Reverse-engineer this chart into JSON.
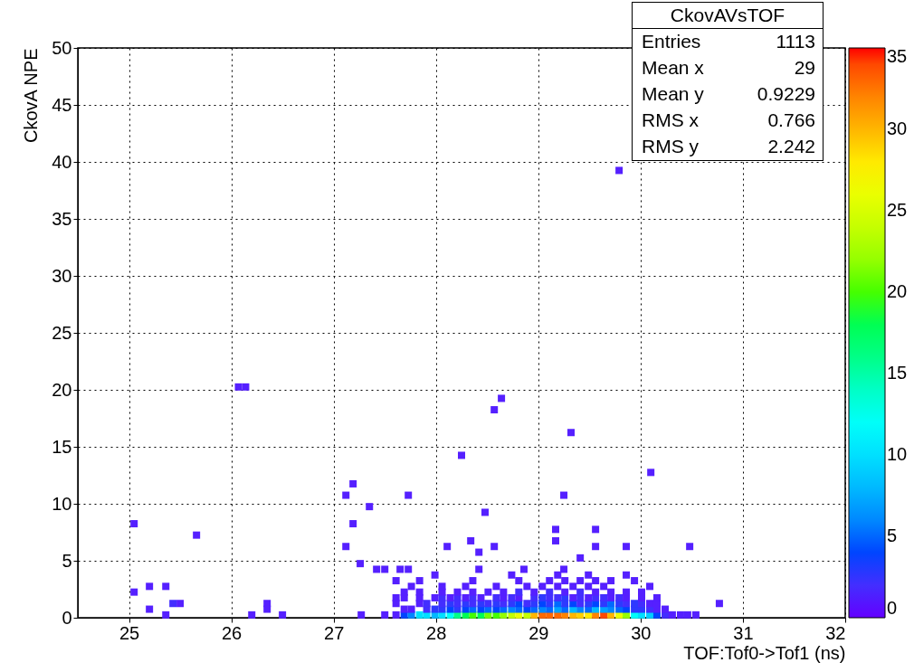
{
  "chart_data": {
    "type": "scatter",
    "xlabel": "TOF:Tof0->Tof1 (ns)",
    "ylabel": "CkovA NPE",
    "marker": "square",
    "grid": true,
    "xlim": [
      24.5,
      32
    ],
    "ylim": [
      0,
      50
    ],
    "xticks": [
      25,
      26,
      27,
      28,
      29,
      30,
      31,
      32
    ],
    "yticks": [
      0,
      5,
      10,
      15,
      20,
      25,
      30,
      35,
      40,
      45,
      50
    ],
    "clim": [
      0,
      35
    ],
    "cticks": [
      0,
      5,
      10,
      15,
      20,
      25,
      30,
      35
    ],
    "annotations": [
      "CkovAVsTOF",
      "Entries",
      "1113",
      "Mean x",
      "29",
      "Mean y",
      "0.9229",
      "RMS x",
      "0.766",
      "RMS y",
      "2.242"
    ],
    "x": [
      29.79,
      26.07,
      26.14,
      28.64,
      28.57,
      29.32,
      28.25,
      30.1,
      27.19,
      27.12,
      27.73,
      29.25,
      27.35,
      28.48,
      25.05,
      27.19,
      29.17,
      29.56,
      25.66,
      28.34,
      29.17,
      27.12,
      28.11,
      28.57,
      29.56,
      29.86,
      30.48,
      28.42,
      29.41,
      27.26,
      27.42,
      27.5,
      27.65,
      27.73,
      28.42,
      28.86,
      29.25,
      25.05,
      25.2,
      25.36,
      25.43,
      25.5,
      25.2,
      25.36,
      26.2,
      26.35,
      26.35,
      26.5,
      27.27,
      27.5,
      30.77,
      27.61,
      27.69,
      27.76,
      27.84,
      27.91,
      27.99,
      28.06,
      28.14,
      28.21,
      28.29,
      28.36,
      28.44,
      28.51,
      28.59,
      28.66,
      28.74,
      28.81,
      28.89,
      28.96,
      29.04,
      29.11,
      29.19,
      29.26,
      29.34,
      29.41,
      29.49,
      29.56,
      29.64,
      29.71,
      29.79,
      29.86,
      29.94,
      30.01,
      30.09,
      30.16,
      30.24,
      30.31,
      30.39,
      30.46,
      30.54,
      27.69,
      27.76,
      27.91,
      27.99,
      28.06,
      28.14,
      28.21,
      28.29,
      28.36,
      28.44,
      28.51,
      28.59,
      28.66,
      28.74,
      28.81,
      28.89,
      28.96,
      29.04,
      29.11,
      29.19,
      29.26,
      29.34,
      29.41,
      29.49,
      29.56,
      29.64,
      29.71,
      29.79,
      29.86,
      29.94,
      30.01,
      30.09,
      30.16,
      30.24,
      27.61,
      27.84,
      27.91,
      28.06,
      28.14,
      28.21,
      28.29,
      28.36,
      28.44,
      28.51,
      28.59,
      28.66,
      28.74,
      28.81,
      28.89,
      28.96,
      29.04,
      29.11,
      29.19,
      29.26,
      29.34,
      29.41,
      29.49,
      29.56,
      29.64,
      29.71,
      29.79,
      29.86,
      29.94,
      30.01,
      30.09,
      30.16,
      27.61,
      27.69,
      27.84,
      27.99,
      28.06,
      28.14,
      28.21,
      28.29,
      28.36,
      28.44,
      28.59,
      28.66,
      28.74,
      28.81,
      28.96,
      29.04,
      29.11,
      29.19,
      29.26,
      29.34,
      29.41,
      29.49,
      29.56,
      29.64,
      29.71,
      29.79,
      29.86,
      30.01,
      30.16,
      27.69,
      27.84,
      28.06,
      28.21,
      28.36,
      28.51,
      28.66,
      28.81,
      28.96,
      29.11,
      29.26,
      29.41,
      29.56,
      29.71,
      29.86,
      30.01,
      27.76,
      28.06,
      28.29,
      28.59,
      28.89,
      29.04,
      29.19,
      29.34,
      29.49,
      29.64,
      30.09,
      27.61,
      27.84,
      28.36,
      28.81,
      29.11,
      29.26,
      29.41,
      29.56,
      29.71,
      29.94,
      27.99,
      28.74,
      29.19,
      29.49,
      29.86
    ],
    "values": [
      39.25,
      20.25,
      20.25,
      19.25,
      18.25,
      16.25,
      14.25,
      12.75,
      11.75,
      10.75,
      10.75,
      10.75,
      9.75,
      9.25,
      8.25,
      8.25,
      7.75,
      7.75,
      7.25,
      6.75,
      6.75,
      6.25,
      6.25,
      6.25,
      6.25,
      6.25,
      6.25,
      5.75,
      5.25,
      4.75,
      4.25,
      4.25,
      4.25,
      4.25,
      4.25,
      4.25,
      4.25,
      2.25,
      2.75,
      2.75,
      1.25,
      1.25,
      0.75,
      0.25,
      0.25,
      1.25,
      0.75,
      0.25,
      0.25,
      0.25,
      1.25,
      0.25,
      0.25,
      0.25,
      0.25,
      0.25,
      0.25,
      0.25,
      0.25,
      0.25,
      0.25,
      0.25,
      0.25,
      0.25,
      0.25,
      0.25,
      0.25,
      0.25,
      0.25,
      0.25,
      0.25,
      0.25,
      0.25,
      0.25,
      0.25,
      0.25,
      0.25,
      0.25,
      0.25,
      0.25,
      0.25,
      0.25,
      0.25,
      0.25,
      0.25,
      0.25,
      0.25,
      0.25,
      0.25,
      0.25,
      0.25,
      0.75,
      0.75,
      0.75,
      0.75,
      0.75,
      0.75,
      0.75,
      0.75,
      0.75,
      0.75,
      0.75,
      0.75,
      0.75,
      0.75,
      0.75,
      0.75,
      0.75,
      0.75,
      0.75,
      0.75,
      0.75,
      0.75,
      0.75,
      0.75,
      0.75,
      0.75,
      0.75,
      0.75,
      0.75,
      0.75,
      0.75,
      0.75,
      0.75,
      0.75,
      1.25,
      1.25,
      1.25,
      1.25,
      1.25,
      1.25,
      1.25,
      1.25,
      1.25,
      1.25,
      1.25,
      1.25,
      1.25,
      1.25,
      1.25,
      1.25,
      1.25,
      1.25,
      1.25,
      1.25,
      1.25,
      1.25,
      1.25,
      1.25,
      1.25,
      1.25,
      1.25,
      1.25,
      1.25,
      1.25,
      1.25,
      1.25,
      1.75,
      1.75,
      1.75,
      1.75,
      1.75,
      1.75,
      1.75,
      1.75,
      1.75,
      1.75,
      1.75,
      1.75,
      1.75,
      1.75,
      1.75,
      1.75,
      1.75,
      1.75,
      1.75,
      1.75,
      1.75,
      1.75,
      1.75,
      1.75,
      1.75,
      1.75,
      1.75,
      1.75,
      1.75,
      2.25,
      2.25,
      2.25,
      2.25,
      2.25,
      2.25,
      2.25,
      2.25,
      2.25,
      2.25,
      2.25,
      2.25,
      2.25,
      2.25,
      2.25,
      2.25,
      2.75,
      2.75,
      2.75,
      2.75,
      2.75,
      2.75,
      2.75,
      2.75,
      2.75,
      2.75,
      2.75,
      3.25,
      3.25,
      3.25,
      3.25,
      3.25,
      3.25,
      3.25,
      3.25,
      3.25,
      3.25,
      3.75,
      3.75,
      3.75,
      3.75,
      3.75
    ],
    "cvalues": [
      1,
      1,
      1,
      1,
      1,
      1,
      1,
      1,
      1,
      1,
      1,
      1,
      1,
      1,
      1,
      1,
      1,
      1,
      1,
      1,
      1,
      1,
      1,
      1,
      1,
      1,
      1,
      1,
      1,
      1,
      1,
      1,
      1,
      1,
      1,
      1,
      1,
      1,
      1,
      1,
      2,
      1,
      1,
      1,
      1,
      1,
      1,
      1,
      1,
      1,
      1,
      1,
      4,
      6,
      10,
      10,
      8,
      10,
      12,
      16,
      18,
      20,
      18,
      21,
      20,
      22,
      24,
      26,
      24,
      30,
      33,
      33,
      33,
      32,
      30,
      29,
      28,
      32,
      34,
      30,
      26,
      22,
      12,
      10,
      9,
      4,
      2,
      1,
      1,
      1,
      1,
      1,
      1,
      2,
      3,
      3,
      4,
      3,
      4,
      5,
      4,
      5,
      4,
      5,
      6,
      5,
      4,
      5,
      6,
      5,
      7,
      5,
      8,
      6,
      5,
      8,
      7,
      6,
      5,
      4,
      3,
      3,
      2,
      1,
      1,
      1,
      1,
      2,
      2,
      3,
      2,
      3,
      2,
      3,
      2,
      3,
      2,
      3,
      4,
      2,
      3,
      4,
      3,
      5,
      3,
      4,
      2,
      3,
      4,
      3,
      5,
      3,
      2,
      3,
      2,
      1,
      1,
      1,
      1,
      1,
      1,
      2,
      1,
      2,
      1,
      2,
      1,
      2,
      1,
      2,
      1,
      2,
      3,
      2,
      2,
      3,
      1,
      2,
      1,
      2,
      2,
      1,
      2,
      1,
      1,
      1,
      1,
      1,
      1,
      1,
      1,
      1,
      1,
      2,
      1,
      2,
      1,
      2,
      1,
      1,
      1,
      1,
      1,
      1,
      1,
      1,
      1,
      1,
      1,
      1,
      1,
      1,
      1,
      1,
      1,
      1,
      1,
      1,
      1,
      1,
      1,
      1,
      1,
      1,
      1,
      1,
      1,
      1
    ]
  }
}
